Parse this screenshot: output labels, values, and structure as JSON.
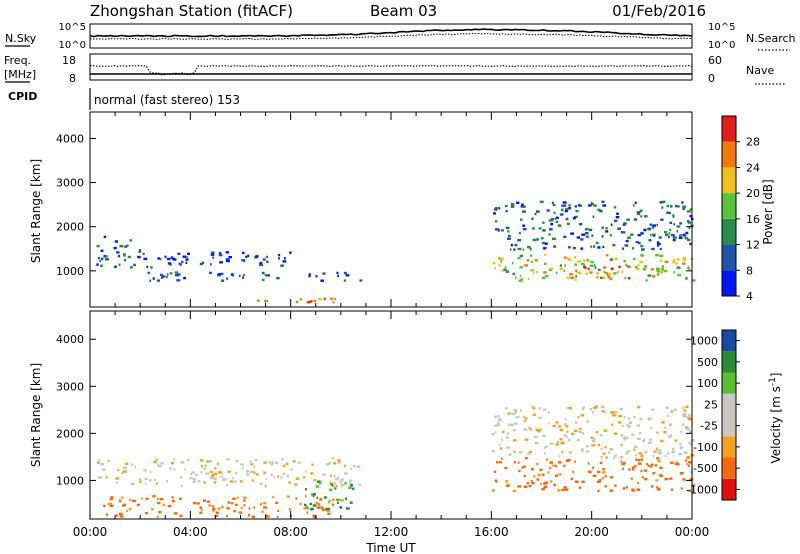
{
  "header": {
    "title": "Zhongshan Station (fitACF)",
    "beam": "Beam 03",
    "date": "01/Feb/2016"
  },
  "noise_panel": {
    "left_label": "N.Sky",
    "right_label": "N.Search",
    "left_ticks": [
      "10^5",
      "10^0"
    ],
    "right_ticks": [
      "10^5",
      "10^0"
    ]
  },
  "freq_panel": {
    "left_label_1": "Freq.",
    "left_label_2": "[MHz]",
    "right_label": "Nave",
    "left_ticks": [
      "18",
      "8"
    ],
    "right_ticks": [
      "60",
      "0"
    ]
  },
  "cpid_panel": {
    "label": "CPID",
    "mode": "normal (fast stereo) 153"
  },
  "time_axis": {
    "label": "Time UT",
    "ticks": [
      "00:00",
      "04:00",
      "08:00",
      "12:00",
      "16:00",
      "20:00",
      "00:00"
    ]
  },
  "chart_data": [
    {
      "type": "heatmap",
      "title": "",
      "xlabel": "Time UT",
      "ylabel": "Slant Range [km]",
      "xlim_hours": [
        0,
        24
      ],
      "ylim_km": [
        180,
        4600
      ],
      "y_ticks": [
        "1000",
        "2000",
        "3000",
        "4000"
      ],
      "colorbar": {
        "label": "Power [dB]",
        "ticks": [
          "28",
          "24",
          "20",
          "16",
          "12",
          "8",
          "4"
        ],
        "colors": [
          "#0018f0",
          "#1e55a8",
          "#2c8a4a",
          "#55c23a",
          "#f0c020",
          "#f07a10",
          "#e0201a"
        ]
      },
      "echo_regions": [
        {
          "t0": 0.2,
          "t1": 2.0,
          "r0": 1100,
          "r1": 1800,
          "value": 8
        },
        {
          "t0": 2.0,
          "t1": 8.0,
          "r0": 1100,
          "r1": 1450,
          "value": 6
        },
        {
          "t0": 2.0,
          "t1": 10.8,
          "r0": 800,
          "r1": 1000,
          "value": 8
        },
        {
          "t0": 6.5,
          "t1": 10.8,
          "r0": 300,
          "r1": 400,
          "value": 22
        },
        {
          "t0": 8.5,
          "t1": 10.2,
          "r0": 280,
          "r1": 360,
          "value": 28
        },
        {
          "t0": 16.0,
          "t1": 24.0,
          "r0": 800,
          "r1": 1400,
          "value": 18
        },
        {
          "t0": 18.5,
          "t1": 21.5,
          "r0": 850,
          "r1": 1150,
          "value": 24
        },
        {
          "t0": 16.0,
          "t1": 24.0,
          "r0": 1500,
          "r1": 2600,
          "value": 9
        }
      ]
    },
    {
      "type": "heatmap",
      "title": "",
      "xlabel": "Time UT",
      "ylabel": "Slant Range [km]",
      "xlim_hours": [
        0,
        24
      ],
      "ylim_km": [
        180,
        4600
      ],
      "y_ticks": [
        "1000",
        "2000",
        "3000",
        "4000"
      ],
      "colorbar": {
        "label": "Velocity [m s^-1]",
        "ticks": [
          "1000",
          "500",
          "100",
          "25",
          "-25",
          "-100",
          "-500",
          "-1000"
        ],
        "colors": [
          "#e01010",
          "#f06a10",
          "#f4a020",
          "#c8c8c0",
          "#c8c8c0",
          "#58c030",
          "#2a8a3a",
          "#1a4aa0"
        ]
      },
      "echo_regions": [
        {
          "t0": 0.2,
          "t1": 10.8,
          "r0": 900,
          "r1": 1500,
          "value": 0
        },
        {
          "t0": 0.5,
          "t1": 10.0,
          "r0": 250,
          "r1": 700,
          "value": -150
        },
        {
          "t0": 8.5,
          "t1": 10.5,
          "r0": 400,
          "r1": 1000,
          "value": 600
        },
        {
          "t0": 16.0,
          "t1": 24.0,
          "r0": 800,
          "r1": 1500,
          "value": -200
        },
        {
          "t0": 16.0,
          "t1": 24.0,
          "r0": 1500,
          "r1": 2600,
          "value": 0
        }
      ]
    }
  ]
}
